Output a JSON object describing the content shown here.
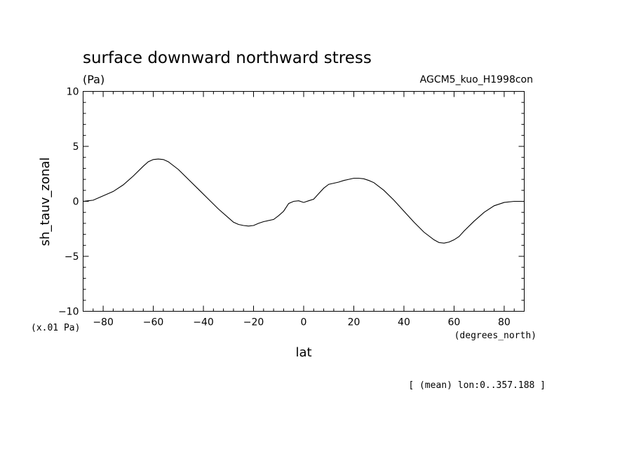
{
  "chart_data": {
    "type": "line",
    "title": "surface downward northward stress",
    "units": "(Pa)",
    "dataset_label": "AGCM5_kuo_H1998con",
    "ylabel": "sh_tauv_zonal",
    "xlabel": "lat",
    "y_scale_note": "(x.01 Pa)",
    "x_units_note": "(degrees_north)",
    "footnote": "[ (mean) lon:0..357.188 ]",
    "xlim": [
      -88,
      88
    ],
    "ylim": [
      -10,
      10
    ],
    "x_ticks": [
      -80,
      -60,
      -40,
      -20,
      0,
      20,
      40,
      60,
      80
    ],
    "x_tick_labels": [
      "−80",
      "−60",
      "−40",
      "−20",
      "0",
      "20",
      "40",
      "60",
      "80"
    ],
    "y_ticks": [
      -10,
      -5,
      0,
      5,
      10
    ],
    "y_tick_labels": [
      "−10",
      "−5",
      "0",
      "5",
      "10"
    ],
    "grid": false,
    "series": [
      {
        "x": [
          -88,
          -84,
          -80,
          -76,
          -72,
          -68,
          -64,
          -62,
          -60,
          -58,
          -56,
          -54,
          -50,
          -46,
          -42,
          -38,
          -34,
          -30,
          -28,
          -26,
          -24,
          -22,
          -20,
          -18,
          -16,
          -12,
          -10,
          -8,
          -6,
          -4,
          -2,
          0,
          2,
          4,
          6,
          8,
          10,
          12,
          14,
          16,
          18,
          20,
          22,
          24,
          26,
          28,
          32,
          36,
          40,
          44,
          48,
          52,
          54,
          56,
          58,
          60,
          62,
          64,
          68,
          72,
          76,
          80,
          84,
          88
        ],
        "y": [
          0.0,
          0.1,
          0.5,
          0.9,
          1.5,
          2.3,
          3.2,
          3.6,
          3.8,
          3.85,
          3.8,
          3.6,
          2.9,
          2.0,
          1.1,
          0.2,
          -0.7,
          -1.5,
          -1.9,
          -2.1,
          -2.2,
          -2.25,
          -2.2,
          -2.0,
          -1.85,
          -1.65,
          -1.3,
          -0.9,
          -0.2,
          0.0,
          0.05,
          -0.1,
          0.05,
          0.2,
          0.7,
          1.2,
          1.55,
          1.65,
          1.75,
          1.9,
          2.0,
          2.1,
          2.1,
          2.05,
          1.9,
          1.7,
          1.0,
          0.1,
          -0.9,
          -1.9,
          -2.8,
          -3.5,
          -3.75,
          -3.8,
          -3.7,
          -3.5,
          -3.2,
          -2.7,
          -1.8,
          -1.0,
          -0.4,
          -0.1,
          0.0,
          0.0
        ]
      }
    ]
  }
}
